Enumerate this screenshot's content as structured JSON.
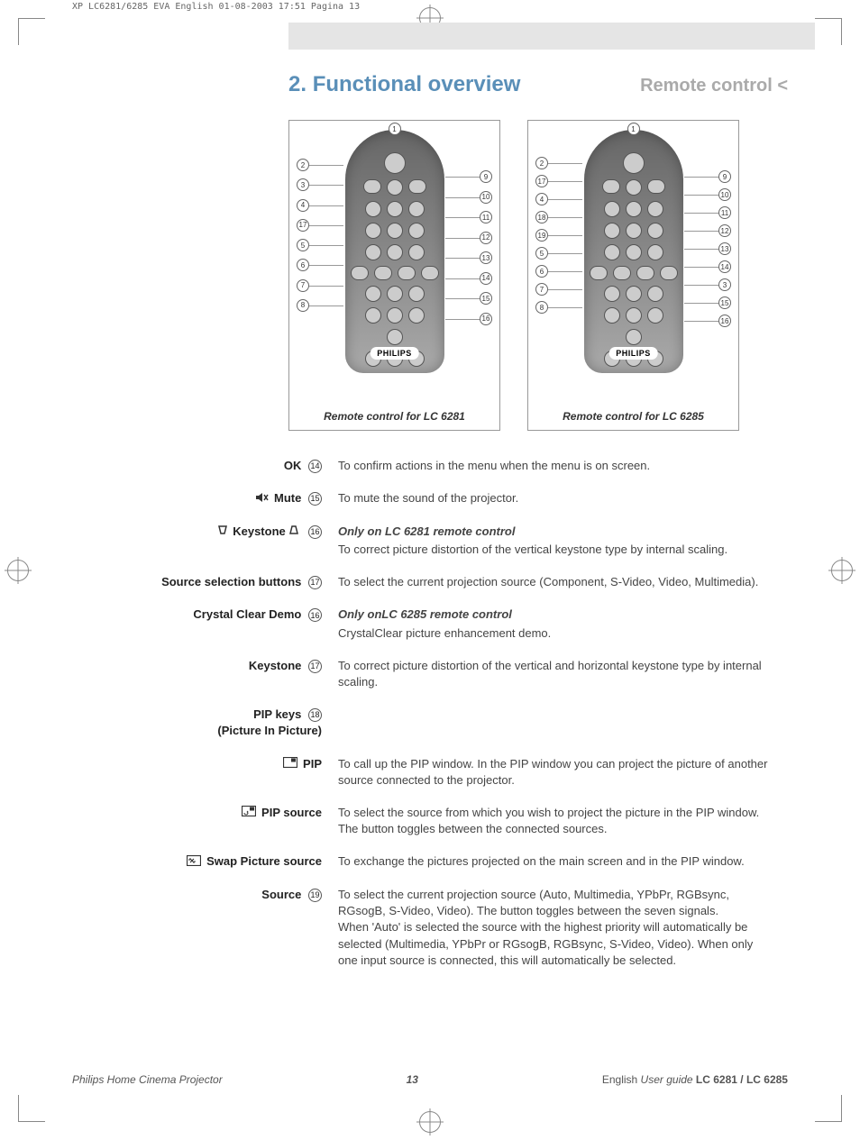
{
  "print_header": "XP LC6281/6285 EVA English  01-08-2003  17:51  Pagina 13",
  "section_number": "2.",
  "section_title": "Functional overview",
  "section_right": "Remote control <",
  "colors": {
    "accent": "#5a8fb8",
    "muted": "#aaaaaa",
    "text": "#333333",
    "strip": "#e5e5e5"
  },
  "remotes": [
    {
      "caption": "Remote control for LC 6281",
      "brand": "PHILIPS",
      "callouts_left": [
        "1",
        "2",
        "3",
        "4",
        "17",
        "5",
        "6",
        "7",
        "8"
      ],
      "callouts_right": [
        "9",
        "10",
        "11",
        "12",
        "13",
        "14",
        "15",
        "16"
      ]
    },
    {
      "caption": "Remote control for LC 6285",
      "brand": "PHILIPS",
      "callouts_left": [
        "1",
        "2",
        "17",
        "4",
        "18",
        "19",
        "5",
        "6",
        "7",
        "8"
      ],
      "callouts_right": [
        "9",
        "10",
        "11",
        "12",
        "13",
        "14",
        "3",
        "15",
        "16"
      ]
    }
  ],
  "definitions": [
    {
      "label": "OK",
      "num": "14",
      "icon": null,
      "desc": "To confirm actions in the menu when the menu is on screen."
    },
    {
      "label": "Mute",
      "num": "15",
      "icon": "mute",
      "desc": "To mute the sound of the projector."
    },
    {
      "label": "Keystone",
      "num": "16",
      "icon": "keystone",
      "subtitle": "Only on LC 6281 remote control",
      "desc": "To correct picture distortion of the vertical keystone type by internal scaling."
    },
    {
      "label": "Source selection buttons",
      "num": "17",
      "icon": null,
      "desc": "To select the current projection source (Component, S-Video, Video, Multimedia)."
    },
    {
      "label": "Crystal Clear Demo",
      "num": "16",
      "icon": null,
      "subtitle": "Only onLC 6285 remote control",
      "desc": "CrystalClear picture enhancement demo."
    },
    {
      "label": "Keystone",
      "num": "17",
      "icon": null,
      "desc": "To correct picture distortion of the vertical and horizontal keystone type by internal scaling."
    },
    {
      "label": "PIP keys",
      "num": "18",
      "icon": null,
      "sublabel": "(Picture In Picture)",
      "desc": ""
    },
    {
      "label": "PIP",
      "num": null,
      "icon": "pip",
      "desc": "To call up the PIP window. In the PIP window you can project the picture of another source connected to the projector."
    },
    {
      "label": "PIP source",
      "num": null,
      "icon": "pip-source",
      "desc": "To select the source from which you wish to project the picture in the PIP window. The button toggles between the connected sources."
    },
    {
      "label": "Swap Picture source",
      "num": null,
      "icon": "swap",
      "desc": "To exchange the pictures projected on the main screen and in the PIP window."
    },
    {
      "label": "Source",
      "num": "19",
      "icon": null,
      "desc": "To select the current projection source (Auto, Multimedia, YPbPr, RGBsync, RGsogB, S-Video, Video). The button toggles between the seven signals.\nWhen 'Auto' is selected the source with the highest priority will automatically be selected (Multimedia, YPbPr or RGsogB, RGBsync, S-Video, Video). When only one input source is connected, this will automatically be selected."
    }
  ],
  "footer": {
    "left": "Philips Home Cinema Projector",
    "page": "13",
    "right_prefix": "English",
    "right_italic": "User guide",
    "right_model": "LC 6281 / LC 6285"
  }
}
